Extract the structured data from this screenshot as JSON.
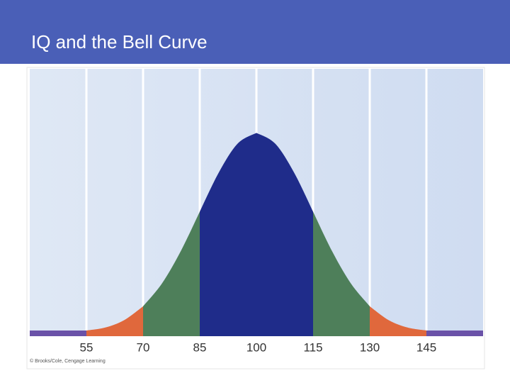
{
  "header": {
    "title": "IQ and the Bell Curve"
  },
  "chart_data": {
    "type": "area",
    "x": [
      40,
      45,
      50,
      55,
      60,
      65,
      70,
      75,
      80,
      85,
      90,
      95,
      100,
      105,
      110,
      115,
      120,
      125,
      130,
      135,
      140,
      145,
      150,
      155,
      160
    ],
    "values": [
      0,
      0.1,
      0.4,
      1.1,
      2.9,
      6.6,
      13.5,
      24.9,
      41.1,
      60.7,
      80.1,
      94.6,
      100,
      94.6,
      80.1,
      60.7,
      41.1,
      24.9,
      13.5,
      6.6,
      2.9,
      1.1,
      0.4,
      0.1,
      0
    ],
    "xlim": [
      40,
      160
    ],
    "xticks": [
      55,
      70,
      85,
      100,
      115,
      130,
      145
    ],
    "ylim": [
      0,
      132
    ],
    "region_colors": [
      "#6a52a8",
      "#e0683c",
      "#4e7f5a",
      "#1f2c8a",
      "#1f2c8a",
      "#4e7f5a",
      "#e0683c",
      "#6a52a8"
    ],
    "grid": true,
    "caption": "© Brooks/Cole, Cengage Learning"
  }
}
